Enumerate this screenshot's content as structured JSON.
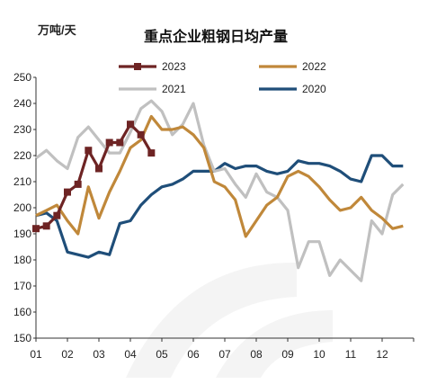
{
  "chart_data": {
    "type": "line",
    "title": "重点企业粗钢日均产量",
    "unit": "万吨/天",
    "ylim": [
      150,
      250
    ],
    "yticks": [
      150,
      160,
      170,
      180,
      190,
      200,
      210,
      220,
      230,
      240,
      250
    ],
    "xlim": [
      0,
      36
    ],
    "xtick_labels": [
      "01",
      "02",
      "03",
      "04",
      "05",
      "06",
      "07",
      "08",
      "09",
      "10",
      "11",
      "12"
    ],
    "legend_placement": "top",
    "grid": false,
    "series": [
      {
        "name": "2020",
        "color": "#1f4e79",
        "marker": false,
        "x": [
          0,
          1,
          2,
          3,
          4,
          5,
          6,
          7,
          8,
          9,
          10,
          11,
          12,
          13,
          14,
          15,
          16,
          17,
          18,
          19,
          20,
          21,
          22,
          23,
          24,
          25,
          26,
          27,
          28,
          29,
          30,
          31,
          32,
          33,
          34,
          35
        ],
        "values": [
          197,
          198,
          195,
          183,
          182,
          181,
          183,
          182,
          194,
          195,
          201,
          205,
          208,
          209,
          211,
          214,
          214,
          214,
          217,
          215,
          216,
          216,
          214,
          213,
          214,
          218,
          217,
          217,
          216,
          214,
          211,
          210,
          220,
          220,
          216,
          216
        ]
      },
      {
        "name": "2021",
        "color": "#c0c0c0",
        "marker": false,
        "x": [
          0,
          1,
          2,
          3,
          4,
          5,
          6,
          7,
          8,
          9,
          10,
          11,
          12,
          13,
          14,
          15,
          16,
          17,
          18,
          19,
          20,
          21,
          22,
          23,
          24,
          25,
          26,
          27,
          28,
          29,
          30,
          31,
          32,
          33,
          34,
          35
        ],
        "values": [
          219,
          222,
          218,
          215,
          227,
          231,
          226,
          221,
          221,
          229,
          238,
          241,
          237,
          228,
          232,
          240,
          224,
          214,
          215,
          209,
          204,
          213,
          206,
          204,
          199,
          177,
          187,
          187,
          174,
          180,
          176,
          172,
          195,
          190,
          205,
          209
        ]
      },
      {
        "name": "2022",
        "color": "#c0883a",
        "marker": false,
        "x": [
          0,
          1,
          2,
          3,
          4,
          5,
          6,
          7,
          8,
          9,
          10,
          11,
          12,
          13,
          14,
          15,
          16,
          17,
          18,
          19,
          20,
          21,
          22,
          23,
          24,
          25,
          26,
          27,
          28,
          29,
          30,
          31,
          32,
          33,
          34,
          35
        ],
        "values": [
          197,
          199,
          201,
          195,
          190,
          208,
          196,
          206,
          214,
          223,
          226,
          235,
          230,
          230,
          231,
          228,
          223,
          210,
          208,
          203,
          189,
          195,
          201,
          204,
          212,
          214,
          212,
          208,
          203,
          199,
          200,
          204,
          199,
          196,
          192,
          193
        ]
      },
      {
        "name": "2023",
        "color": "#6e2424",
        "marker": true,
        "x": [
          0,
          1,
          2,
          3,
          4,
          5,
          6,
          7,
          8,
          9,
          10,
          11
        ],
        "values": [
          192,
          193,
          197,
          206,
          209,
          222,
          215,
          225,
          225,
          232,
          228,
          221
        ]
      }
    ]
  }
}
